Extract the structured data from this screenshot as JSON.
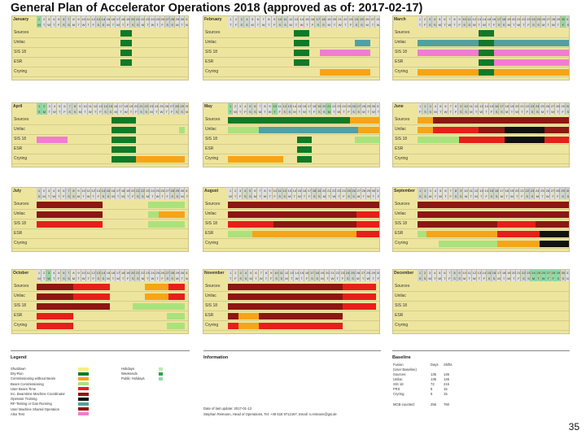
{
  "title": "General Plan of Accelerator Operations 2018 (approved as of: 2017-02-17)",
  "page_number": "35",
  "row_labels": [
    "Sources",
    "Unilac",
    "SIS 18",
    "ESR",
    "Cryring"
  ],
  "colors": {
    "shutdown": "#f5f07c",
    "dryrun": "#0f7a28",
    "commissioning": "#f6a418",
    "beamcomm": "#aae27c",
    "userbeam": "#e5201a",
    "userbeam_coord": "#8c1713",
    "operator": "#111111",
    "rf": "#52a0a0",
    "pink": "#f27ccf",
    "holiday": "#bfe9b6",
    "weekend": "#28a548",
    "public": "#8fdca8"
  },
  "months": [
    {
      "name": "January",
      "days": 31,
      "first": 0,
      "weekend_days": [
        6,
        7,
        13,
        14,
        20,
        21,
        27,
        28
      ],
      "highlight_days": [
        1
      ],
      "bars": [
        {
          "row": 0,
          "s": 0.55,
          "e": 0.62,
          "c": "dryrun"
        },
        {
          "row": 1,
          "s": 0.55,
          "e": 0.62,
          "c": "dryrun"
        },
        {
          "row": 2,
          "s": 0.55,
          "e": 0.62,
          "c": "dryrun"
        },
        {
          "row": 3,
          "s": 0.55,
          "e": 0.62,
          "c": "dryrun"
        }
      ]
    },
    {
      "name": "February",
      "days": 28,
      "first": 3,
      "weekend_days": [
        3,
        4,
        10,
        11,
        17,
        18,
        24,
        25
      ],
      "highlight_days": [],
      "bars": [
        {
          "row": 0,
          "s": 0.43,
          "e": 0.53,
          "c": "dryrun"
        },
        {
          "row": 1,
          "s": 0.43,
          "e": 0.53,
          "c": "dryrun"
        },
        {
          "row": 1,
          "s": 0.83,
          "e": 0.93,
          "c": "rf"
        },
        {
          "row": 2,
          "s": 0.43,
          "e": 0.53,
          "c": "dryrun"
        },
        {
          "row": 2,
          "s": 0.6,
          "e": 0.93,
          "c": "pink"
        },
        {
          "row": 3,
          "s": 0.43,
          "e": 0.53,
          "c": "dryrun"
        },
        {
          "row": 4,
          "s": 0.6,
          "e": 0.93,
          "c": "commissioning"
        }
      ]
    },
    {
      "name": "March",
      "days": 31,
      "first": 3,
      "weekend_days": [
        3,
        4,
        10,
        11,
        17,
        18,
        24,
        25,
        31
      ],
      "highlight_days": [
        30
      ],
      "bars": [
        {
          "row": 0,
          "s": 0.4,
          "e": 0.5,
          "c": "dryrun"
        },
        {
          "row": 1,
          "s": 0.0,
          "e": 0.4,
          "c": "rf"
        },
        {
          "row": 1,
          "s": 0.4,
          "e": 0.5,
          "c": "dryrun"
        },
        {
          "row": 1,
          "s": 0.5,
          "e": 1.0,
          "c": "rf"
        },
        {
          "row": 2,
          "s": 0.0,
          "e": 0.4,
          "c": "pink"
        },
        {
          "row": 2,
          "s": 0.4,
          "e": 0.5,
          "c": "dryrun"
        },
        {
          "row": 2,
          "s": 0.5,
          "e": 1.0,
          "c": "pink"
        },
        {
          "row": 3,
          "s": 0.4,
          "e": 0.5,
          "c": "dryrun"
        },
        {
          "row": 3,
          "s": 0.5,
          "e": 1.0,
          "c": "pink"
        },
        {
          "row": 4,
          "s": 0.0,
          "e": 0.4,
          "c": "commissioning"
        },
        {
          "row": 4,
          "s": 0.4,
          "e": 0.5,
          "c": "dryrun"
        },
        {
          "row": 4,
          "s": 0.5,
          "e": 1.0,
          "c": "commissioning"
        }
      ]
    },
    {
      "name": "April",
      "days": 30,
      "first": 6,
      "weekend_days": [
        1,
        7,
        8,
        14,
        15,
        21,
        22,
        28,
        29
      ],
      "highlight_days": [
        1,
        2
      ],
      "bars": [
        {
          "row": 0,
          "s": 0.49,
          "e": 0.65,
          "c": "dryrun"
        },
        {
          "row": 1,
          "s": 0.49,
          "e": 0.65,
          "c": "dryrun"
        },
        {
          "row": 1,
          "s": 0.93,
          "e": 0.97,
          "c": "beamcomm"
        },
        {
          "row": 2,
          "s": 0.0,
          "e": 0.2,
          "c": "pink"
        },
        {
          "row": 2,
          "s": 0.49,
          "e": 0.65,
          "c": "dryrun"
        },
        {
          "row": 3,
          "s": 0.49,
          "e": 0.65,
          "c": "dryrun"
        },
        {
          "row": 4,
          "s": 0.49,
          "e": 0.65,
          "c": "dryrun"
        },
        {
          "row": 4,
          "s": 0.65,
          "e": 0.97,
          "c": "commissioning"
        }
      ]
    },
    {
      "name": "May",
      "days": 31,
      "first": 1,
      "weekend_days": [
        5,
        6,
        12,
        13,
        19,
        20,
        26,
        27
      ],
      "highlight_days": [
        1,
        10,
        21
      ],
      "bars": [
        {
          "row": 0,
          "s": 0.0,
          "e": 0.8,
          "c": "dryrun"
        },
        {
          "row": 0,
          "s": 0.8,
          "e": 1.0,
          "c": "commissioning"
        },
        {
          "row": 1,
          "s": 0.0,
          "e": 0.2,
          "c": "beamcomm"
        },
        {
          "row": 1,
          "s": 0.2,
          "e": 0.85,
          "c": "rf"
        },
        {
          "row": 1,
          "s": 0.85,
          "e": 1.0,
          "c": "commissioning"
        },
        {
          "row": 2,
          "s": 0.45,
          "e": 0.55,
          "c": "dryrun"
        },
        {
          "row": 2,
          "s": 0.83,
          "e": 1.0,
          "c": "beamcomm"
        },
        {
          "row": 3,
          "s": 0.45,
          "e": 0.55,
          "c": "dryrun"
        },
        {
          "row": 4,
          "s": 0.0,
          "e": 0.36,
          "c": "commissioning"
        },
        {
          "row": 4,
          "s": 0.45,
          "e": 0.55,
          "c": "dryrun"
        }
      ]
    },
    {
      "name": "June",
      "days": 30,
      "first": 4,
      "weekend_days": [
        2,
        3,
        9,
        10,
        16,
        17,
        23,
        24,
        30
      ],
      "highlight_days": [],
      "bars": [
        {
          "row": 0,
          "s": 0.0,
          "e": 0.1,
          "c": "commissioning"
        },
        {
          "row": 0,
          "s": 0.1,
          "e": 1.0,
          "c": "userbeam_coord"
        },
        {
          "row": 1,
          "s": 0.0,
          "e": 0.1,
          "c": "commissioning"
        },
        {
          "row": 1,
          "s": 0.1,
          "e": 0.4,
          "c": "userbeam"
        },
        {
          "row": 1,
          "s": 0.4,
          "e": 0.57,
          "c": "userbeam_coord"
        },
        {
          "row": 1,
          "s": 0.57,
          "e": 0.83,
          "c": "operator"
        },
        {
          "row": 1,
          "s": 0.83,
          "e": 1.0,
          "c": "userbeam_coord"
        },
        {
          "row": 2,
          "s": 0.0,
          "e": 0.27,
          "c": "beamcomm"
        },
        {
          "row": 2,
          "s": 0.27,
          "e": 0.57,
          "c": "userbeam"
        },
        {
          "row": 2,
          "s": 0.57,
          "e": 0.83,
          "c": "operator"
        },
        {
          "row": 2,
          "s": 0.83,
          "e": 1.0,
          "c": "userbeam"
        }
      ]
    },
    {
      "name": "July",
      "days": 31,
      "first": 6,
      "weekend_days": [
        1,
        7,
        8,
        14,
        15,
        21,
        22,
        28,
        29
      ],
      "highlight_days": [],
      "bars": [
        {
          "row": 0,
          "s": 0.0,
          "e": 0.43,
          "c": "userbeam_coord"
        },
        {
          "row": 0,
          "s": 0.73,
          "e": 0.97,
          "c": "beamcomm"
        },
        {
          "row": 1,
          "s": 0.0,
          "e": 0.43,
          "c": "userbeam_coord"
        },
        {
          "row": 1,
          "s": 0.73,
          "e": 0.8,
          "c": "beamcomm"
        },
        {
          "row": 1,
          "s": 0.8,
          "e": 0.97,
          "c": "commissioning"
        },
        {
          "row": 2,
          "s": 0.0,
          "e": 0.43,
          "c": "userbeam"
        },
        {
          "row": 2,
          "s": 0.73,
          "e": 0.97,
          "c": "beamcomm"
        }
      ]
    },
    {
      "name": "August",
      "days": 31,
      "first": 2,
      "weekend_days": [
        4,
        5,
        11,
        12,
        18,
        19,
        25,
        26
      ],
      "highlight_days": [],
      "bars": [
        {
          "row": 0,
          "s": 0.0,
          "e": 1.0,
          "c": "userbeam_coord"
        },
        {
          "row": 1,
          "s": 0.0,
          "e": 0.84,
          "c": "userbeam_coord"
        },
        {
          "row": 1,
          "s": 0.84,
          "e": 1.0,
          "c": "userbeam"
        },
        {
          "row": 2,
          "s": 0.0,
          "e": 0.3,
          "c": "userbeam"
        },
        {
          "row": 2,
          "s": 0.3,
          "e": 0.84,
          "c": "userbeam_coord"
        },
        {
          "row": 2,
          "s": 0.84,
          "e": 1.0,
          "c": "userbeam"
        },
        {
          "row": 3,
          "s": 0.0,
          "e": 0.16,
          "c": "beamcomm"
        },
        {
          "row": 3,
          "s": 0.16,
          "e": 0.84,
          "c": "commissioning"
        },
        {
          "row": 3,
          "s": 0.84,
          "e": 1.0,
          "c": "userbeam"
        }
      ]
    },
    {
      "name": "September",
      "days": 30,
      "first": 5,
      "weekend_days": [
        1,
        2,
        8,
        9,
        15,
        16,
        22,
        23,
        29,
        30
      ],
      "highlight_days": [],
      "bars": [
        {
          "row": 0,
          "s": 0.0,
          "e": 1.0,
          "c": "userbeam_coord"
        },
        {
          "row": 1,
          "s": 0.0,
          "e": 1.0,
          "c": "userbeam_coord"
        },
        {
          "row": 2,
          "s": 0.0,
          "e": 0.52,
          "c": "userbeam_coord"
        },
        {
          "row": 2,
          "s": 0.52,
          "e": 0.77,
          "c": "userbeam"
        },
        {
          "row": 2,
          "s": 0.77,
          "e": 1.0,
          "c": "userbeam_coord"
        },
        {
          "row": 3,
          "s": 0.0,
          "e": 0.06,
          "c": "beamcomm"
        },
        {
          "row": 3,
          "s": 0.06,
          "e": 0.52,
          "c": "commissioning"
        },
        {
          "row": 3,
          "s": 0.52,
          "e": 0.8,
          "c": "userbeam"
        },
        {
          "row": 3,
          "s": 0.8,
          "e": 1.0,
          "c": "operator"
        },
        {
          "row": 4,
          "s": 0.14,
          "e": 0.52,
          "c": "beamcomm"
        },
        {
          "row": 4,
          "s": 0.52,
          "e": 0.8,
          "c": "commissioning"
        },
        {
          "row": 4,
          "s": 0.8,
          "e": 1.0,
          "c": "operator"
        }
      ]
    },
    {
      "name": "October",
      "days": 31,
      "first": 0,
      "weekend_days": [
        6,
        7,
        13,
        14,
        20,
        21,
        27,
        28
      ],
      "highlight_days": [
        3
      ],
      "bars": [
        {
          "row": 0,
          "s": 0.0,
          "e": 0.24,
          "c": "userbeam_coord"
        },
        {
          "row": 0,
          "s": 0.24,
          "e": 0.48,
          "c": "userbeam"
        },
        {
          "row": 0,
          "s": 0.71,
          "e": 0.86,
          "c": "commissioning"
        },
        {
          "row": 0,
          "s": 0.86,
          "e": 0.97,
          "c": "userbeam"
        },
        {
          "row": 1,
          "s": 0.0,
          "e": 0.24,
          "c": "userbeam_coord"
        },
        {
          "row": 1,
          "s": 0.24,
          "e": 0.48,
          "c": "userbeam"
        },
        {
          "row": 1,
          "s": 0.71,
          "e": 0.86,
          "c": "commissioning"
        },
        {
          "row": 1,
          "s": 0.86,
          "e": 0.97,
          "c": "userbeam"
        },
        {
          "row": 2,
          "s": 0.0,
          "e": 0.48,
          "c": "userbeam_coord"
        },
        {
          "row": 2,
          "s": 0.63,
          "e": 0.97,
          "c": "beamcomm"
        },
        {
          "row": 3,
          "s": 0.0,
          "e": 0.24,
          "c": "userbeam"
        },
        {
          "row": 3,
          "s": 0.85,
          "e": 0.97,
          "c": "beamcomm"
        },
        {
          "row": 4,
          "s": 0.0,
          "e": 0.24,
          "c": "userbeam"
        },
        {
          "row": 4,
          "s": 0.85,
          "e": 0.97,
          "c": "beamcomm"
        }
      ]
    },
    {
      "name": "November",
      "days": 30,
      "first": 3,
      "weekend_days": [
        3,
        4,
        10,
        11,
        17,
        18,
        24,
        25
      ],
      "highlight_days": [],
      "bars": [
        {
          "row": 0,
          "s": 0.0,
          "e": 0.75,
          "c": "userbeam_coord"
        },
        {
          "row": 0,
          "s": 0.75,
          "e": 0.97,
          "c": "userbeam"
        },
        {
          "row": 1,
          "s": 0.0,
          "e": 0.75,
          "c": "userbeam_coord"
        },
        {
          "row": 1,
          "s": 0.75,
          "e": 0.97,
          "c": "userbeam"
        },
        {
          "row": 2,
          "s": 0.0,
          "e": 0.75,
          "c": "userbeam_coord"
        },
        {
          "row": 2,
          "s": 0.75,
          "e": 0.97,
          "c": "userbeam"
        },
        {
          "row": 3,
          "s": 0.0,
          "e": 0.07,
          "c": "userbeam_coord"
        },
        {
          "row": 3,
          "s": 0.07,
          "e": 0.2,
          "c": "commissioning"
        },
        {
          "row": 3,
          "s": 0.2,
          "e": 0.75,
          "c": "userbeam_coord"
        },
        {
          "row": 4,
          "s": 0.0,
          "e": 0.07,
          "c": "userbeam"
        },
        {
          "row": 4,
          "s": 0.07,
          "e": 0.2,
          "c": "commissioning"
        },
        {
          "row": 4,
          "s": 0.2,
          "e": 0.75,
          "c": "userbeam"
        }
      ]
    },
    {
      "name": "December",
      "days": 31,
      "first": 5,
      "weekend_days": [
        1,
        2,
        8,
        9,
        15,
        16,
        22,
        23,
        29,
        30
      ],
      "highlight_days": [
        24,
        25,
        26,
        27,
        28,
        29
      ],
      "bars": []
    }
  ],
  "legend": {
    "title": "Legend",
    "items": [
      {
        "label": "Shutdown",
        "c": "shutdown"
      },
      {
        "label": "Dry-Run",
        "c": "dryrun"
      },
      {
        "label": "Commissioning without Beam",
        "c": "commissioning"
      },
      {
        "label": "Beam Commissioning",
        "c": "beamcomm"
      },
      {
        "label": "User Beam Time",
        "c": "userbeam"
      },
      {
        "label": "Inc. Beamtime Machine Coordinator",
        "c": "userbeam_coord"
      },
      {
        "label": "Operator Training",
        "c": "operator"
      },
      {
        "label": "RF-Testing or Gas Running",
        "c": "rf"
      },
      {
        "label": "User Machine Shared Operation",
        "c": "userbeam_coord"
      },
      {
        "label": "Also Test",
        "c": "pink"
      }
    ],
    "key_items": [
      {
        "label": "Holidays",
        "c": "holiday"
      },
      {
        "label": "Weekends",
        "c": "weekend"
      },
      {
        "label": "Public Holidays",
        "c": "public"
      }
    ]
  },
  "information": {
    "title": "Information",
    "date_line": "Date of last update: 2017-01-13",
    "contact_line": "Stephan Reimann, Head of Operations, Tel: +49 615 9712197, Email: s.reimann@gsi.de"
  },
  "baseline": {
    "title": "Baseline",
    "headers": [
      "",
      "Days",
      "Shifts"
    ],
    "rows": [
      [
        "Fusion",
        "",
        ""
      ],
      [
        "(User Baseline)",
        "",
        ""
      ],
      [
        "Sources",
        "135",
        "145"
      ],
      [
        "Unilac",
        "135",
        "145"
      ],
      [
        "SIS 18",
        "72",
        "215"
      ],
      [
        "FRS",
        "5",
        "15"
      ],
      [
        "Cryring",
        "5",
        "15"
      ]
    ],
    "footer": [
      "MCB-counted:",
      "256",
      "760"
    ]
  }
}
